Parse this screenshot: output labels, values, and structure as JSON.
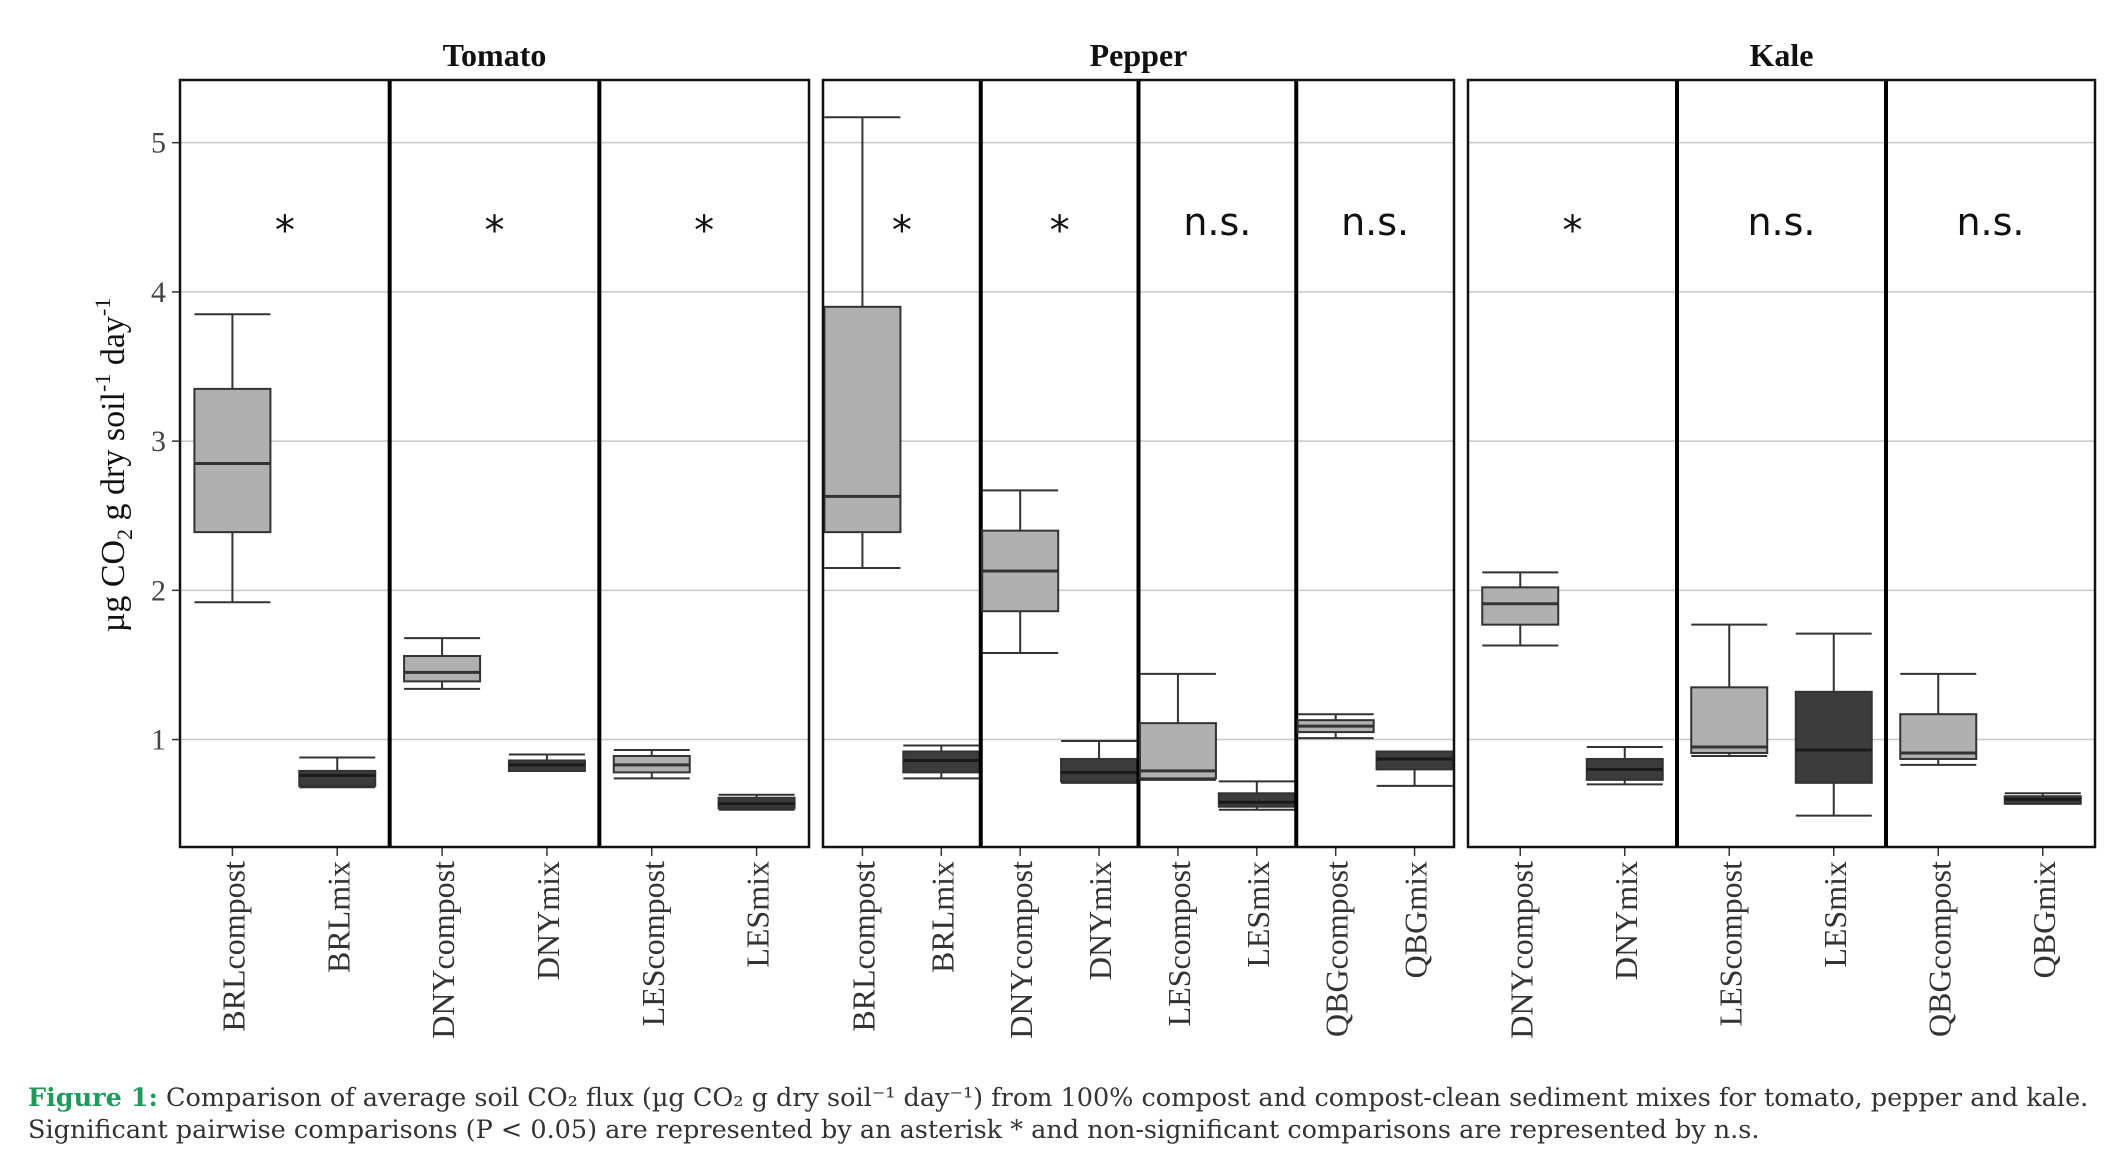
{
  "chart_data": {
    "type": "boxplot",
    "ylabel": "µg CO₂ g dry soil⁻¹ day⁻¹",
    "ylabel_parts": {
      "a": "µg CO",
      "sub": "2",
      "b": " g dry soil",
      "sup1": "-1",
      "c": " day",
      "sup2": "-1"
    },
    "yticks": [
      1,
      2,
      3,
      4,
      5
    ],
    "ylim": [
      0.28,
      5.42
    ],
    "panels": [
      {
        "title": "Tomato",
        "groups": [
          {
            "annotation": "*",
            "boxes": [
              {
                "label": "BRLcompost",
                "fill": "#b0b0b0",
                "stats": {
                  "whislo": 1.92,
                  "q1": 2.39,
                  "med": 2.85,
                  "q3": 3.35,
                  "whishi": 3.85
                }
              },
              {
                "label": "BRLmix",
                "fill": "#3c3c3c",
                "stats": {
                  "whislo": 0.68,
                  "q1": 0.69,
                  "med": 0.76,
                  "q3": 0.79,
                  "whishi": 0.88
                }
              }
            ]
          },
          {
            "annotation": "*",
            "boxes": [
              {
                "label": "DNYcompost",
                "fill": "#b0b0b0",
                "stats": {
                  "whislo": 1.34,
                  "q1": 1.39,
                  "med": 1.45,
                  "q3": 1.56,
                  "whishi": 1.68
                }
              },
              {
                "label": "DNYmix",
                "fill": "#3c3c3c",
                "stats": {
                  "whislo": 0.79,
                  "q1": 0.79,
                  "med": 0.83,
                  "q3": 0.86,
                  "whishi": 0.9
                }
              }
            ]
          },
          {
            "annotation": "*",
            "boxes": [
              {
                "label": "LEScompost",
                "fill": "#b0b0b0",
                "stats": {
                  "whislo": 0.74,
                  "q1": 0.78,
                  "med": 0.83,
                  "q3": 0.89,
                  "whishi": 0.93
                }
              },
              {
                "label": "LESmix",
                "fill": "#3c3c3c",
                "stats": {
                  "whislo": 0.53,
                  "q1": 0.54,
                  "med": 0.57,
                  "q3": 0.61,
                  "whishi": 0.63
                }
              }
            ]
          }
        ]
      },
      {
        "title": "Pepper",
        "groups": [
          {
            "annotation": "*",
            "boxes": [
              {
                "label": "BRLcompost",
                "fill": "#b0b0b0",
                "stats": {
                  "whislo": 2.15,
                  "q1": 2.39,
                  "med": 2.63,
                  "q3": 3.9,
                  "whishi": 5.17
                }
              },
              {
                "label": "BRLmix",
                "fill": "#3c3c3c",
                "stats": {
                  "whislo": 0.74,
                  "q1": 0.78,
                  "med": 0.86,
                  "q3": 0.92,
                  "whishi": 0.96
                }
              }
            ]
          },
          {
            "annotation": "*",
            "boxes": [
              {
                "label": "DNYcompost",
                "fill": "#b0b0b0",
                "stats": {
                  "whislo": 1.58,
                  "q1": 1.86,
                  "med": 2.13,
                  "q3": 2.4,
                  "whishi": 2.67
                }
              },
              {
                "label": "DNYmix",
                "fill": "#3c3c3c",
                "stats": {
                  "whislo": 0.71,
                  "q1": 0.72,
                  "med": 0.78,
                  "q3": 0.87,
                  "whishi": 0.99
                }
              }
            ]
          },
          {
            "annotation": "n.s.",
            "boxes": [
              {
                "label": "LEScompost",
                "fill": "#b0b0b0",
                "stats": {
                  "whislo": 0.73,
                  "q1": 0.74,
                  "med": 0.79,
                  "q3": 1.11,
                  "whishi": 1.44
                }
              },
              {
                "label": "LESmix",
                "fill": "#3c3c3c",
                "stats": {
                  "whislo": 0.53,
                  "q1": 0.55,
                  "med": 0.58,
                  "q3": 0.64,
                  "whishi": 0.72
                }
              }
            ]
          },
          {
            "annotation": "n.s.",
            "boxes": [
              {
                "label": "QBGcompost",
                "fill": "#b0b0b0",
                "stats": {
                  "whislo": 1.01,
                  "q1": 1.05,
                  "med": 1.09,
                  "q3": 1.13,
                  "whishi": 1.17
                }
              },
              {
                "label": "QBGmix",
                "fill": "#3c3c3c",
                "stats": {
                  "whislo": 0.69,
                  "q1": 0.8,
                  "med": 0.87,
                  "q3": 0.92,
                  "whishi": 0.92
                }
              }
            ]
          }
        ]
      },
      {
        "title": "Kale",
        "groups": [
          {
            "annotation": "*",
            "boxes": [
              {
                "label": "DNYcompost",
                "fill": "#b0b0b0",
                "stats": {
                  "whislo": 1.63,
                  "q1": 1.77,
                  "med": 1.91,
                  "q3": 2.02,
                  "whishi": 2.12
                }
              },
              {
                "label": "DNYmix",
                "fill": "#3c3c3c",
                "stats": {
                  "whislo": 0.7,
                  "q1": 0.73,
                  "med": 0.8,
                  "q3": 0.87,
                  "whishi": 0.95
                }
              }
            ]
          },
          {
            "annotation": "n.s.",
            "boxes": [
              {
                "label": "LEScompost",
                "fill": "#b0b0b0",
                "stats": {
                  "whislo": 0.89,
                  "q1": 0.91,
                  "med": 0.95,
                  "q3": 1.35,
                  "whishi": 1.77
                }
              },
              {
                "label": "LESmix",
                "fill": "#3c3c3c",
                "stats": {
                  "whislo": 0.49,
                  "q1": 0.71,
                  "med": 0.93,
                  "q3": 1.32,
                  "whishi": 1.71
                }
              }
            ]
          },
          {
            "annotation": "n.s.",
            "boxes": [
              {
                "label": "QBGcompost",
                "fill": "#b0b0b0",
                "stats": {
                  "whislo": 0.83,
                  "q1": 0.87,
                  "med": 0.91,
                  "q3": 1.17,
                  "whishi": 1.44
                }
              },
              {
                "label": "QBGmix",
                "fill": "#3c3c3c",
                "stats": {
                  "whislo": 0.57,
                  "q1": 0.57,
                  "med": 0.6,
                  "q3": 0.62,
                  "whishi": 0.64
                }
              }
            ]
          }
        ]
      }
    ]
  },
  "caption": {
    "label": "Figure 1:",
    "text": " Comparison of average soil CO₂ flux (µg CO₂ g dry soil⁻¹ day⁻¹) from 100% compost and compost-clean sediment mixes for tomato, pepper and kale. Significant pairwise comparisons (P < 0.05) are represented by an asterisk * and non-significant comparisons are represented by n.s."
  }
}
